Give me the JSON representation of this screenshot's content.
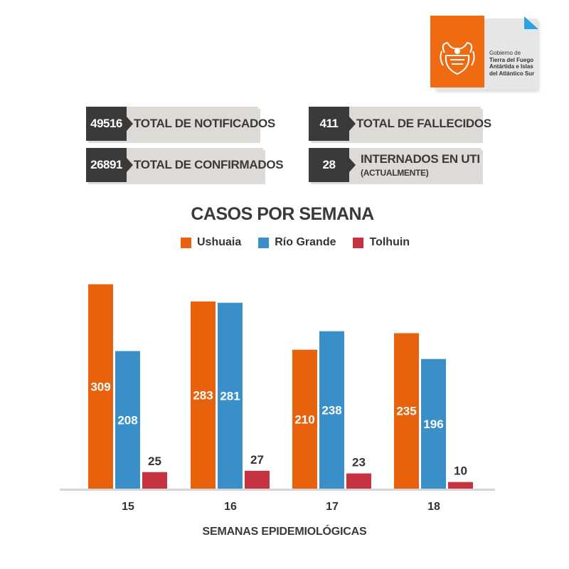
{
  "logo": {
    "line1": "Gobierno de",
    "line2": "Tierra del Fuego",
    "line3": "Antártida e Islas",
    "line4": "del Atlántico Sur",
    "icon": "coat-of-arms-icon"
  },
  "stats": [
    {
      "value": "49516",
      "label": "TOTAL DE NOTIFICADOS",
      "sub": ""
    },
    {
      "value": "411",
      "label": "TOTAL DE FALLECIDOS",
      "sub": ""
    },
    {
      "value": "26891",
      "label": "TOTAL DE CONFIRMADOS",
      "sub": ""
    },
    {
      "value": "28",
      "label": "INTERNADOS EN UTI",
      "sub": "(ACTUALMENTE)"
    }
  ],
  "colors": {
    "ushuaia": "#e8620e",
    "rio_grande": "#3b8fc9",
    "tolhuin": "#c63441",
    "dark": "#3a3a3a",
    "light": "#dedad6",
    "accent": "#2aa3e0"
  },
  "chart_data": {
    "type": "bar",
    "title": "CASOS POR SEMANA",
    "xlabel": "SEMANAS EPIDEMIOLÓGICAS",
    "ylabel": "",
    "categories": [
      "15",
      "16",
      "17",
      "18"
    ],
    "series": [
      {
        "name": "Ushuaia",
        "values": [
          309,
          283,
          210,
          235
        ],
        "color": "#e8620e"
      },
      {
        "name": "Río Grande",
        "values": [
          208,
          281,
          238,
          196
        ],
        "color": "#3b8fc9"
      },
      {
        "name": "Tolhuin",
        "values": [
          25,
          27,
          23,
          10
        ],
        "color": "#c63441"
      }
    ],
    "ylim": [
      0,
      330
    ],
    "legend": "top-center",
    "grid": false
  }
}
